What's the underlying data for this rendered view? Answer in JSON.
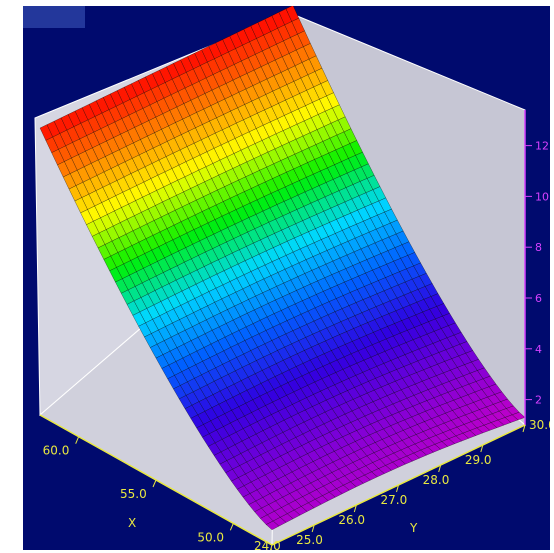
{
  "window": {
    "badge_color": "#23379b",
    "background": "#000a6e"
  },
  "chart_data": {
    "type": "surface",
    "title": "",
    "xlabel": "X",
    "ylabel": "Y",
    "zlabel": "",
    "x_ticks": [
      "50.0",
      "55.0",
      "60.0"
    ],
    "y_ticks": [
      "24.0",
      "25.0",
      "26.0",
      "27.0",
      "28.0",
      "29.0",
      "30.0"
    ],
    "z_ticks": [
      "2",
      "4",
      "6",
      "8",
      "10",
      "12"
    ],
    "xlim": [
      47.5,
      62.5
    ],
    "ylim": [
      24.0,
      30.0
    ],
    "zlim": [
      1.0,
      13.0
    ],
    "colormap": [
      "#c800c8",
      "#7a00d8",
      "#3000e0",
      "#0060ff",
      "#00d8ff",
      "#00f000",
      "#ffff00",
      "#ff8000",
      "#ff0000"
    ],
    "surface_corners": {
      "x_high_y_low": 12.3,
      "x_high_y_high": 12.4,
      "x_low_y_high": 1.3,
      "x_low_y_low": 1.6
    },
    "grid": true
  }
}
